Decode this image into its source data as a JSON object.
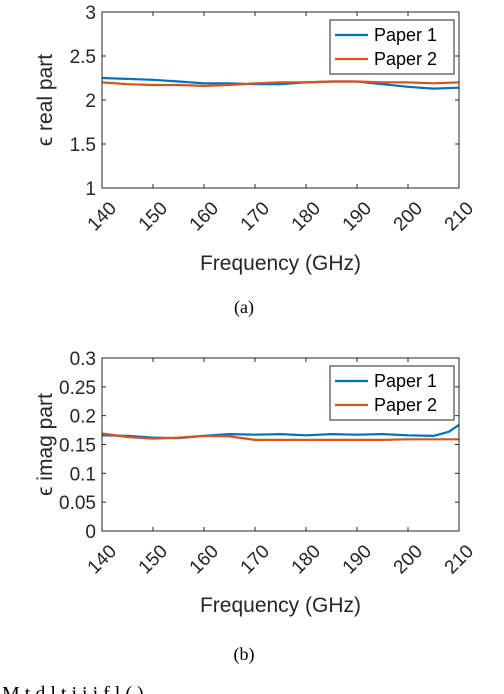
{
  "colors": {
    "paper1": "#0072bd",
    "paper2": "#d95319",
    "axis": "#262626"
  },
  "chart_data": [
    {
      "type": "line",
      "caption": "(a)",
      "xlabel": "Frequency (GHz)",
      "ylabel": "ϵ real part",
      "xlim": [
        140,
        210
      ],
      "ylim": [
        1,
        3
      ],
      "xticks": [
        "140",
        "150",
        "160",
        "170",
        "180",
        "190",
        "200",
        "210"
      ],
      "yticks": [
        "1",
        "1.5",
        "2",
        "2.5",
        "3"
      ],
      "grid": false,
      "legend": "top-right",
      "series": [
        {
          "name": "Paper 1",
          "color": "#0072bd",
          "x": [
            140,
            145,
            150,
            155,
            160,
            165,
            170,
            175,
            180,
            185,
            190,
            195,
            200,
            205,
            210
          ],
          "y": [
            2.25,
            2.24,
            2.23,
            2.21,
            2.19,
            2.19,
            2.18,
            2.18,
            2.2,
            2.21,
            2.21,
            2.18,
            2.15,
            2.13,
            2.14
          ]
        },
        {
          "name": "Paper 2",
          "color": "#d95319",
          "x": [
            140,
            145,
            150,
            155,
            160,
            165,
            170,
            175,
            180,
            185,
            190,
            195,
            200,
            205,
            210
          ],
          "y": [
            2.2,
            2.18,
            2.17,
            2.17,
            2.16,
            2.17,
            2.19,
            2.2,
            2.2,
            2.21,
            2.21,
            2.2,
            2.2,
            2.19,
            2.2
          ]
        }
      ]
    },
    {
      "type": "line",
      "caption": "(b)",
      "xlabel": "Frequency (GHz)",
      "ylabel": "ϵ imag part",
      "xlim": [
        140,
        210
      ],
      "ylim": [
        0,
        0.3
      ],
      "xticks": [
        "140",
        "150",
        "160",
        "170",
        "180",
        "190",
        "200",
        "210"
      ],
      "yticks": [
        "0",
        "0.05",
        "0.1",
        "0.15",
        "0.2",
        "0.25",
        "0.3"
      ],
      "grid": false,
      "legend": "top-right",
      "series": [
        {
          "name": "Paper 1",
          "color": "#0072bd",
          "x": [
            140,
            145,
            150,
            155,
            160,
            165,
            170,
            175,
            180,
            185,
            190,
            195,
            200,
            205,
            208,
            210
          ],
          "y": [
            0.166,
            0.165,
            0.162,
            0.161,
            0.165,
            0.168,
            0.167,
            0.168,
            0.166,
            0.168,
            0.167,
            0.168,
            0.166,
            0.165,
            0.172,
            0.184
          ]
        },
        {
          "name": "Paper 2",
          "color": "#d95319",
          "x": [
            140,
            145,
            150,
            155,
            160,
            165,
            170,
            175,
            180,
            185,
            190,
            195,
            200,
            205,
            210
          ],
          "y": [
            0.169,
            0.163,
            0.16,
            0.162,
            0.165,
            0.164,
            0.158,
            0.158,
            0.158,
            0.158,
            0.158,
            0.158,
            0.159,
            0.159,
            0.159
          ]
        }
      ]
    }
  ],
  "footer_text": "M        t   d        l   t   i   i   i          f                        l      (   )"
}
